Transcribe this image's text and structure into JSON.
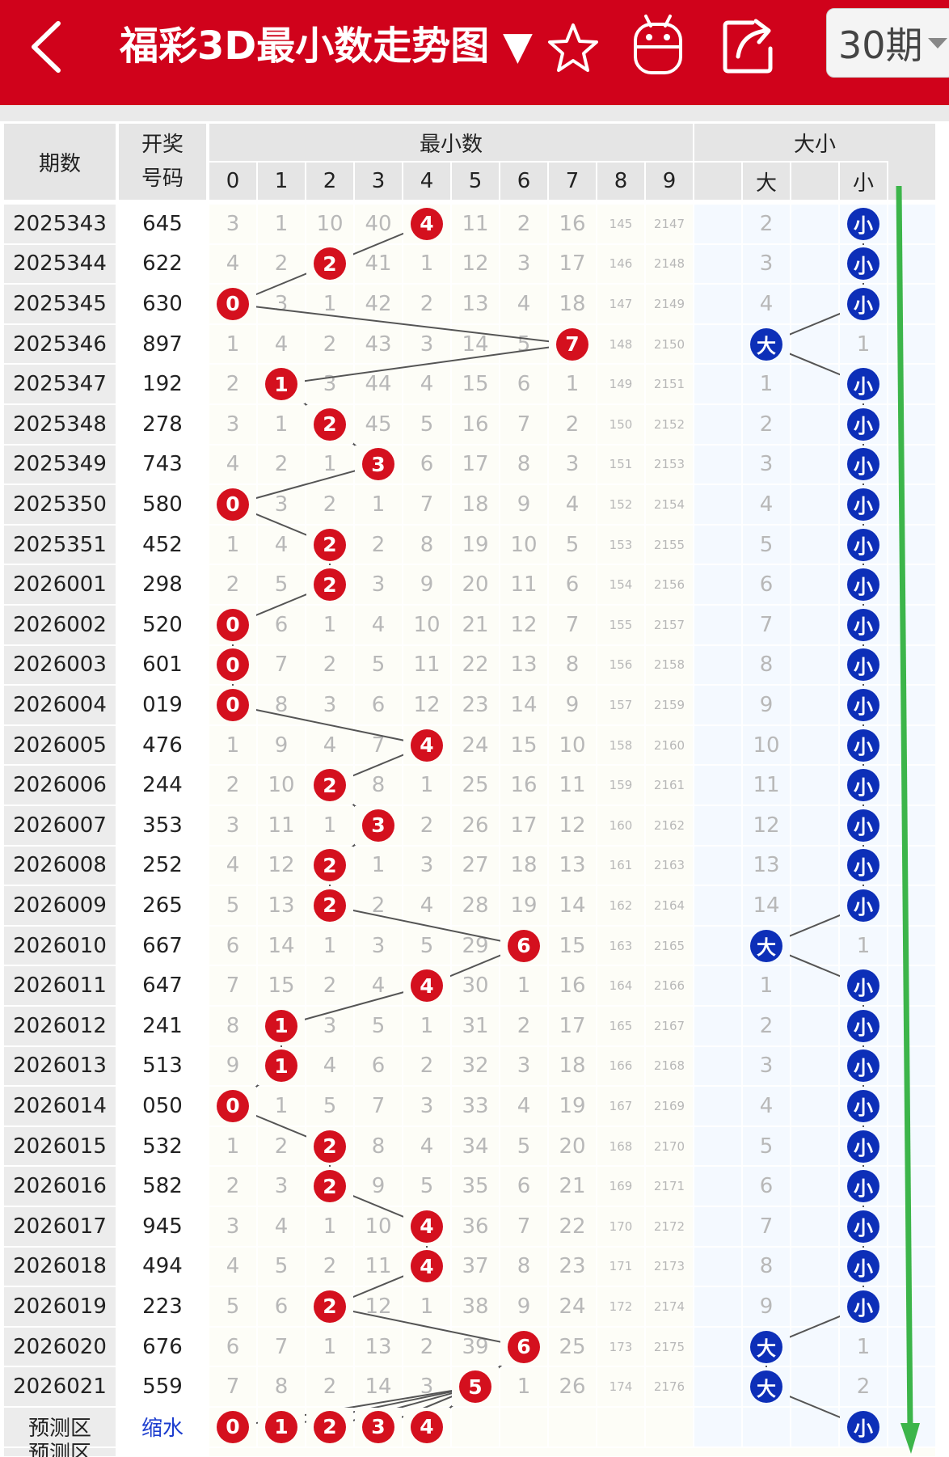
{
  "header": {
    "title": "福彩3D最小数走势图 ▼",
    "period_select": "30期",
    "icons": [
      "back-arrow-icon",
      "star-icon",
      "android-robot-icon",
      "share-icon"
    ],
    "bg_color": "#d0021b"
  },
  "table": {
    "col_period": "期数",
    "col_number_line1": "开奖",
    "col_number_line2": "号码",
    "group_min": "最小数",
    "group_size": "大小",
    "digits": [
      "0",
      "1",
      "2",
      "3",
      "4",
      "5",
      "6",
      "7",
      "8",
      "9"
    ],
    "size_labels": [
      "大",
      "小"
    ],
    "rows": [
      {
        "period": "2025343",
        "number": "645",
        "min": 4,
        "misses": [
          "3",
          "1",
          "10",
          "40",
          "",
          "11",
          "2",
          "16",
          "145",
          "2147"
        ],
        "size": "小",
        "size_miss": [
          "2",
          ""
        ]
      },
      {
        "period": "2025344",
        "number": "622",
        "min": 2,
        "misses": [
          "4",
          "2",
          "",
          "41",
          "1",
          "12",
          "3",
          "17",
          "146",
          "2148"
        ],
        "size": "小",
        "size_miss": [
          "3",
          ""
        ]
      },
      {
        "period": "2025345",
        "number": "630",
        "min": 0,
        "misses": [
          "",
          "3",
          "1",
          "42",
          "2",
          "13",
          "4",
          "18",
          "147",
          "2149"
        ],
        "size": "小",
        "size_miss": [
          "4",
          ""
        ]
      },
      {
        "period": "2025346",
        "number": "897",
        "min": 7,
        "misses": [
          "1",
          "4",
          "2",
          "43",
          "3",
          "14",
          "5",
          "",
          "148",
          "2150"
        ],
        "size": "大",
        "size_miss": [
          "",
          "1"
        ]
      },
      {
        "period": "2025347",
        "number": "192",
        "min": 1,
        "misses": [
          "2",
          "",
          "3",
          "44",
          "4",
          "15",
          "6",
          "1",
          "149",
          "2151"
        ],
        "size": "小",
        "size_miss": [
          "1",
          ""
        ]
      },
      {
        "period": "2025348",
        "number": "278",
        "min": 2,
        "misses": [
          "3",
          "1",
          "",
          "45",
          "5",
          "16",
          "7",
          "2",
          "150",
          "2152"
        ],
        "size": "小",
        "size_miss": [
          "2",
          ""
        ]
      },
      {
        "period": "2025349",
        "number": "743",
        "min": 3,
        "misses": [
          "4",
          "2",
          "1",
          "",
          "6",
          "17",
          "8",
          "3",
          "151",
          "2153"
        ],
        "size": "小",
        "size_miss": [
          "3",
          ""
        ]
      },
      {
        "period": "2025350",
        "number": "580",
        "min": 0,
        "misses": [
          "",
          "3",
          "2",
          "1",
          "7",
          "18",
          "9",
          "4",
          "152",
          "2154"
        ],
        "size": "小",
        "size_miss": [
          "4",
          ""
        ]
      },
      {
        "period": "2025351",
        "number": "452",
        "min": 2,
        "misses": [
          "1",
          "4",
          "",
          "2",
          "8",
          "19",
          "10",
          "5",
          "153",
          "2155"
        ],
        "size": "小",
        "size_miss": [
          "5",
          ""
        ]
      },
      {
        "period": "2026001",
        "number": "298",
        "min": 2,
        "misses": [
          "2",
          "5",
          "",
          "3",
          "9",
          "20",
          "11",
          "6",
          "154",
          "2156"
        ],
        "size": "小",
        "size_miss": [
          "6",
          ""
        ]
      },
      {
        "period": "2026002",
        "number": "520",
        "min": 0,
        "misses": [
          "",
          "6",
          "1",
          "4",
          "10",
          "21",
          "12",
          "7",
          "155",
          "2157"
        ],
        "size": "小",
        "size_miss": [
          "7",
          ""
        ]
      },
      {
        "period": "2026003",
        "number": "601",
        "min": 0,
        "misses": [
          "",
          "7",
          "2",
          "5",
          "11",
          "22",
          "13",
          "8",
          "156",
          "2158"
        ],
        "size": "小",
        "size_miss": [
          "8",
          ""
        ]
      },
      {
        "period": "2026004",
        "number": "019",
        "min": 0,
        "misses": [
          "",
          "8",
          "3",
          "6",
          "12",
          "23",
          "14",
          "9",
          "157",
          "2159"
        ],
        "size": "小",
        "size_miss": [
          "9",
          ""
        ]
      },
      {
        "period": "2026005",
        "number": "476",
        "min": 4,
        "misses": [
          "1",
          "9",
          "4",
          "7",
          "",
          "24",
          "15",
          "10",
          "158",
          "2160"
        ],
        "size": "小",
        "size_miss": [
          "10",
          ""
        ]
      },
      {
        "period": "2026006",
        "number": "244",
        "min": 2,
        "misses": [
          "2",
          "10",
          "",
          "8",
          "1",
          "25",
          "16",
          "11",
          "159",
          "2161"
        ],
        "size": "小",
        "size_miss": [
          "11",
          ""
        ]
      },
      {
        "period": "2026007",
        "number": "353",
        "min": 3,
        "misses": [
          "3",
          "11",
          "1",
          "",
          "2",
          "26",
          "17",
          "12",
          "160",
          "2162"
        ],
        "size": "小",
        "size_miss": [
          "12",
          ""
        ]
      },
      {
        "period": "2026008",
        "number": "252",
        "min": 2,
        "misses": [
          "4",
          "12",
          "",
          "1",
          "3",
          "27",
          "18",
          "13",
          "161",
          "2163"
        ],
        "size": "小",
        "size_miss": [
          "13",
          ""
        ]
      },
      {
        "period": "2026009",
        "number": "265",
        "min": 2,
        "misses": [
          "5",
          "13",
          "",
          "2",
          "4",
          "28",
          "19",
          "14",
          "162",
          "2164"
        ],
        "size": "小",
        "size_miss": [
          "14",
          ""
        ]
      },
      {
        "period": "2026010",
        "number": "667",
        "min": 6,
        "misses": [
          "6",
          "14",
          "1",
          "3",
          "5",
          "29",
          "",
          "15",
          "163",
          "2165"
        ],
        "size": "大",
        "size_miss": [
          "",
          "1"
        ]
      },
      {
        "period": "2026011",
        "number": "647",
        "min": 4,
        "misses": [
          "7",
          "15",
          "2",
          "4",
          "",
          "30",
          "1",
          "16",
          "164",
          "2166"
        ],
        "size": "小",
        "size_miss": [
          "1",
          ""
        ]
      },
      {
        "period": "2026012",
        "number": "241",
        "min": 1,
        "misses": [
          "8",
          "",
          "3",
          "5",
          "1",
          "31",
          "2",
          "17",
          "165",
          "2167"
        ],
        "size": "小",
        "size_miss": [
          "2",
          ""
        ]
      },
      {
        "period": "2026013",
        "number": "513",
        "min": 1,
        "misses": [
          "9",
          "",
          "4",
          "6",
          "2",
          "32",
          "3",
          "18",
          "166",
          "2168"
        ],
        "size": "小",
        "size_miss": [
          "3",
          ""
        ]
      },
      {
        "period": "2026014",
        "number": "050",
        "min": 0,
        "misses": [
          "",
          "1",
          "5",
          "7",
          "3",
          "33",
          "4",
          "19",
          "167",
          "2169"
        ],
        "size": "小",
        "size_miss": [
          "4",
          ""
        ]
      },
      {
        "period": "2026015",
        "number": "532",
        "min": 2,
        "misses": [
          "1",
          "2",
          "",
          "8",
          "4",
          "34",
          "5",
          "20",
          "168",
          "2170"
        ],
        "size": "小",
        "size_miss": [
          "5",
          ""
        ]
      },
      {
        "period": "2026016",
        "number": "582",
        "min": 2,
        "misses": [
          "2",
          "3",
          "",
          "9",
          "5",
          "35",
          "6",
          "21",
          "169",
          "2171"
        ],
        "size": "小",
        "size_miss": [
          "6",
          ""
        ]
      },
      {
        "period": "2026017",
        "number": "945",
        "min": 4,
        "misses": [
          "3",
          "4",
          "1",
          "10",
          "",
          "36",
          "7",
          "22",
          "170",
          "2172"
        ],
        "size": "小",
        "size_miss": [
          "7",
          ""
        ]
      },
      {
        "period": "2026018",
        "number": "494",
        "min": 4,
        "misses": [
          "4",
          "5",
          "2",
          "11",
          "",
          "37",
          "8",
          "23",
          "171",
          "2173"
        ],
        "size": "小",
        "size_miss": [
          "8",
          ""
        ]
      },
      {
        "period": "2026019",
        "number": "223",
        "min": 2,
        "misses": [
          "5",
          "6",
          "",
          "12",
          "1",
          "38",
          "9",
          "24",
          "172",
          "2174"
        ],
        "size": "小",
        "size_miss": [
          "9",
          ""
        ]
      },
      {
        "period": "2026020",
        "number": "676",
        "min": 6,
        "misses": [
          "6",
          "7",
          "1",
          "13",
          "2",
          "39",
          "",
          "25",
          "173",
          "2175"
        ],
        "size": "大",
        "size_miss": [
          "",
          "1"
        ]
      },
      {
        "period": "2026021",
        "number": "559",
        "min": 5,
        "misses": [
          "7",
          "8",
          "2",
          "14",
          "3",
          "",
          "1",
          "26",
          "174",
          "2176"
        ],
        "size": "大",
        "size_miss": [
          "",
          "2"
        ]
      }
    ],
    "prediction": {
      "label": "预测区",
      "action": "缩水",
      "balls": [
        "0",
        "1",
        "2",
        "3",
        "4"
      ],
      "size": "小"
    },
    "next_row_label": "预测区"
  },
  "colors": {
    "min_ball": "#d4101e",
    "size_ball": "#0d2fb8",
    "trend_arrow": "#3cb54a",
    "line": "#555555"
  }
}
